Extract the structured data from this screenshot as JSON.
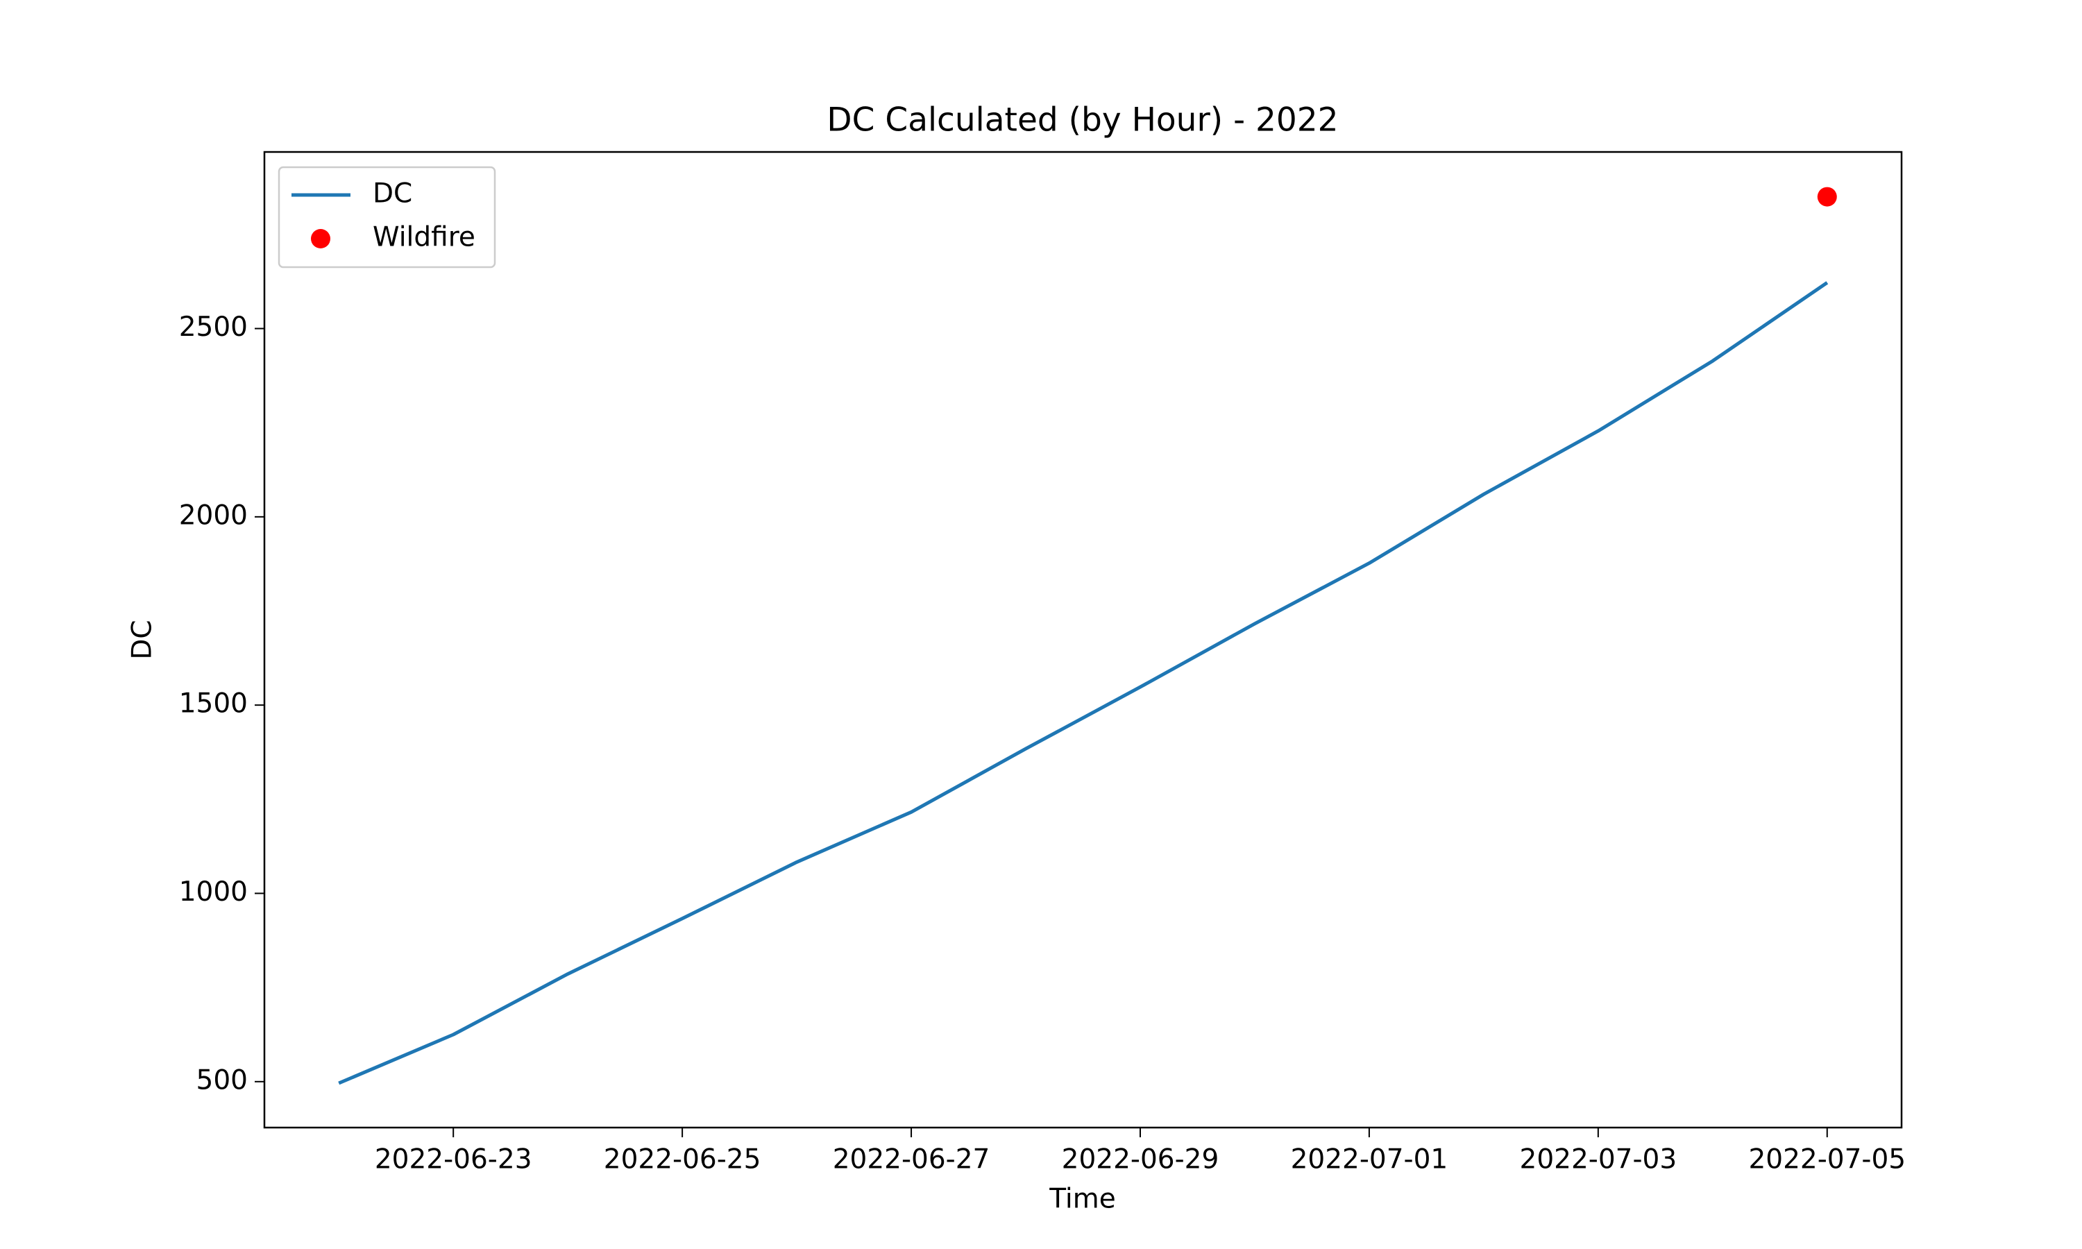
{
  "chart_data": {
    "type": "line",
    "title": "DC Calculated (by Hour) - 2022",
    "x_label": "Time",
    "y_label": "DC",
    "x": [
      "2022-06-22",
      "2022-06-23",
      "2022-06-24",
      "2022-06-25",
      "2022-06-26",
      "2022-06-27",
      "2022-06-28",
      "2022-06-29",
      "2022-06-30",
      "2022-07-01",
      "2022-07-02",
      "2022-07-03",
      "2022-07-04",
      "2022-07-05"
    ],
    "series": [
      {
        "name": "DC",
        "type": "line",
        "color": "#1f77b4",
        "values": [
          496,
          625,
          786,
          933,
          1083,
          1216,
          1384,
          1548,
          1716,
          1877,
          2060,
          2228,
          2414,
          2622
        ]
      },
      {
        "name": "Wildfire",
        "type": "scatter",
        "color": "#ff0000",
        "x": [
          "2022-07-05"
        ],
        "values": [
          2850
        ]
      }
    ],
    "ylim": [
      378,
      2969
    ],
    "yticks": [
      500,
      1000,
      1500,
      2000,
      2500
    ],
    "xticks": [
      "2022-06-23",
      "2022-06-25",
      "2022-06-27",
      "2022-06-29",
      "2022-07-01",
      "2022-07-03",
      "2022-07-05"
    ],
    "grid": false,
    "legend": "upper left"
  }
}
